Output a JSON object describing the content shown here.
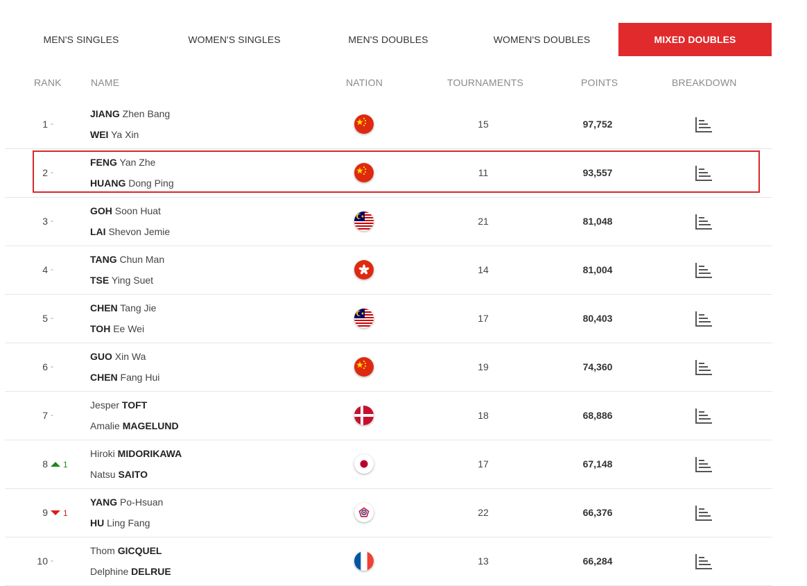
{
  "tabs": [
    {
      "label": "MEN'S SINGLES",
      "active": false
    },
    {
      "label": "WOMEN'S SINGLES",
      "active": false
    },
    {
      "label": "MEN'S DOUBLES",
      "active": false
    },
    {
      "label": "WOMEN'S DOUBLES",
      "active": false
    },
    {
      "label": "MIXED DOUBLES",
      "active": true
    }
  ],
  "columns": {
    "rank": "RANK",
    "name": "NAME",
    "nation": "NATION",
    "tournaments": "TOURNAMENTS",
    "points": "POINTS",
    "breakdown": "BREAKDOWN"
  },
  "colors": {
    "accent": "#e12a2c",
    "highlight_border": "#d5282b",
    "up": "#1c8a1c",
    "down": "#d52020"
  },
  "rows": [
    {
      "rank": "1",
      "change": "-",
      "trend": "none",
      "players": [
        {
          "pre": "",
          "bold": "JIANG",
          "post": " Zhen Bang"
        },
        {
          "pre": "",
          "bold": "WEI",
          "post": " Ya Xin"
        }
      ],
      "nation": "china",
      "tournaments": "15",
      "points": "97,752",
      "highlighted": false
    },
    {
      "rank": "2",
      "change": "-",
      "trend": "none",
      "players": [
        {
          "pre": "",
          "bold": "FENG",
          "post": " Yan Zhe"
        },
        {
          "pre": "",
          "bold": "HUANG",
          "post": " Dong Ping"
        }
      ],
      "nation": "china",
      "tournaments": "11",
      "points": "93,557",
      "highlighted": true
    },
    {
      "rank": "3",
      "change": "-",
      "trend": "none",
      "players": [
        {
          "pre": "",
          "bold": "GOH",
          "post": " Soon Huat"
        },
        {
          "pre": "",
          "bold": "LAI",
          "post": " Shevon Jemie"
        }
      ],
      "nation": "malaysia",
      "tournaments": "21",
      "points": "81,048",
      "highlighted": false
    },
    {
      "rank": "4",
      "change": "-",
      "trend": "none",
      "players": [
        {
          "pre": "",
          "bold": "TANG",
          "post": " Chun Man"
        },
        {
          "pre": "",
          "bold": "TSE",
          "post": " Ying Suet"
        }
      ],
      "nation": "hongkong",
      "tournaments": "14",
      "points": "81,004",
      "highlighted": false
    },
    {
      "rank": "5",
      "change": "-",
      "trend": "none",
      "players": [
        {
          "pre": "",
          "bold": "CHEN",
          "post": " Tang Jie"
        },
        {
          "pre": "",
          "bold": "TOH",
          "post": " Ee Wei"
        }
      ],
      "nation": "malaysia",
      "tournaments": "17",
      "points": "80,403",
      "highlighted": false
    },
    {
      "rank": "6",
      "change": "-",
      "trend": "none",
      "players": [
        {
          "pre": "",
          "bold": "GUO",
          "post": " Xin Wa"
        },
        {
          "pre": "",
          "bold": "CHEN",
          "post": " Fang Hui"
        }
      ],
      "nation": "china",
      "tournaments": "19",
      "points": "74,360",
      "highlighted": false
    },
    {
      "rank": "7",
      "change": "-",
      "trend": "none",
      "players": [
        {
          "pre": "Jesper ",
          "bold": "TOFT",
          "post": ""
        },
        {
          "pre": "Amalie ",
          "bold": "MAGELUND",
          "post": ""
        }
      ],
      "nation": "denmark",
      "tournaments": "18",
      "points": "68,886",
      "highlighted": false
    },
    {
      "rank": "8",
      "change": "1",
      "trend": "up",
      "players": [
        {
          "pre": "Hiroki ",
          "bold": "MIDORIKAWA",
          "post": ""
        },
        {
          "pre": "Natsu ",
          "bold": "SAITO",
          "post": ""
        }
      ],
      "nation": "japan",
      "tournaments": "17",
      "points": "67,148",
      "highlighted": false
    },
    {
      "rank": "9",
      "change": "1",
      "trend": "down",
      "players": [
        {
          "pre": "",
          "bold": "YANG",
          "post": " Po-Hsuan"
        },
        {
          "pre": "",
          "bold": "HU",
          "post": " Ling Fang"
        }
      ],
      "nation": "chinese-taipei",
      "tournaments": "22",
      "points": "66,376",
      "highlighted": false
    },
    {
      "rank": "10",
      "change": "-",
      "trend": "none",
      "players": [
        {
          "pre": "Thom ",
          "bold": "GICQUEL",
          "post": ""
        },
        {
          "pre": "Delphine ",
          "bold": "DELRUE",
          "post": ""
        }
      ],
      "nation": "france",
      "tournaments": "13",
      "points": "66,284",
      "highlighted": false
    }
  ]
}
